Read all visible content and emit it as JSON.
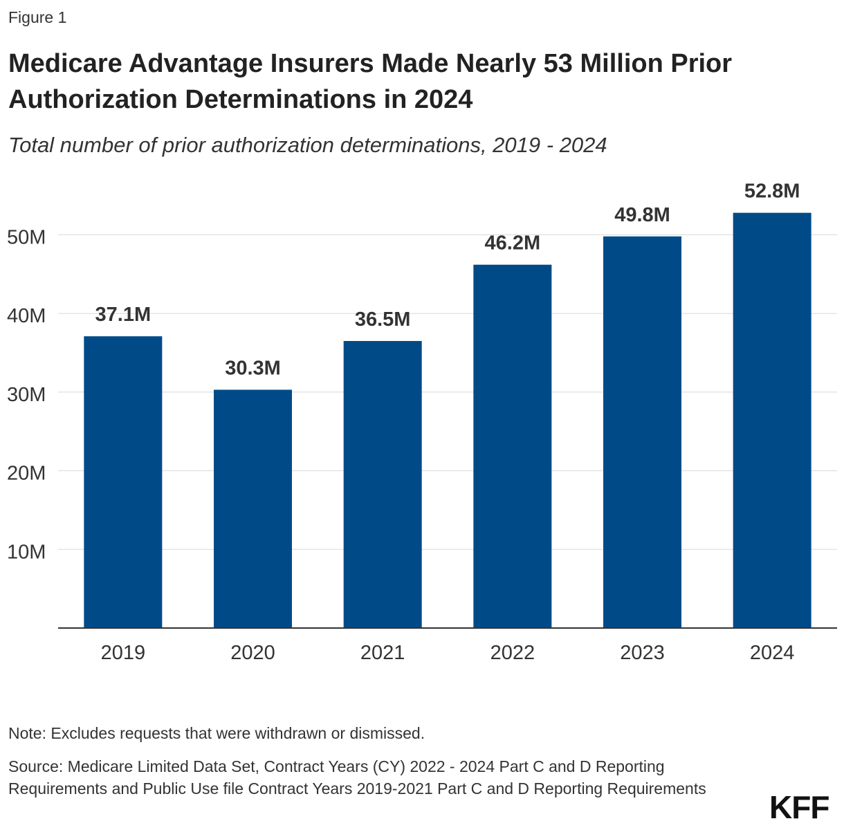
{
  "figure_label": "Figure 1",
  "chart_data": {
    "type": "bar",
    "title": "Medicare Advantage Insurers Made Nearly 53 Million Prior Authorization Determinations in 2024",
    "subtitle": "Total number of prior authorization determinations, 2019 - 2024",
    "categories": [
      "2019",
      "2020",
      "2021",
      "2022",
      "2023",
      "2024"
    ],
    "values": [
      37.1,
      30.3,
      36.5,
      46.2,
      49.8,
      52.8
    ],
    "data_labels": [
      "37.1M",
      "30.3M",
      "36.5M",
      "46.2M",
      "49.8M",
      "52.8M"
    ],
    "yticks": [
      10,
      20,
      30,
      40,
      50
    ],
    "ytick_labels": [
      "10M",
      "20M",
      "30M",
      "40M",
      "50M"
    ],
    "ylim": [
      0,
      56
    ],
    "grid": true,
    "bar_color": "#004b87",
    "gridline_color": "#d8d8d8"
  },
  "note": "Note: Excludes requests that were withdrawn or dismissed.",
  "source": "Source: Medicare Limited Data Set, Contract Years (CY) 2022 - 2024 Part C and D Reporting Requirements and Public Use file Contract Years 2019-2021 Part C and D Reporting Requirements",
  "logo": "KFF"
}
